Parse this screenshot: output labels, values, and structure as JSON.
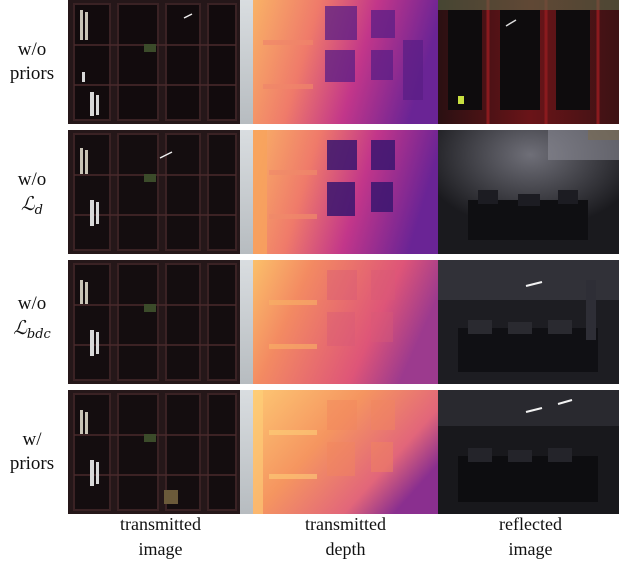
{
  "rows": [
    {
      "line1": "w/o",
      "line2": "priors",
      "math": false
    },
    {
      "line1": "w/o",
      "line2": "ℒ",
      "sub": "d",
      "math": true
    },
    {
      "line1": "w/o",
      "line2": "ℒ",
      "sub": "bdc",
      "math": true
    },
    {
      "line1": "w/",
      "line2": "priors",
      "math": false
    }
  ],
  "columns": [
    {
      "line1": "transmitted",
      "line2": "image"
    },
    {
      "line1": "transmitted",
      "line2": "depth"
    },
    {
      "line1": "reflected",
      "line2": "image"
    }
  ],
  "colors": {
    "depth_near": "#f7a35c",
    "depth_mid": "#e4567a",
    "depth_far": "#4b1a88",
    "cabinet": "#2a1a1c",
    "reflection_bg": "#141416"
  }
}
